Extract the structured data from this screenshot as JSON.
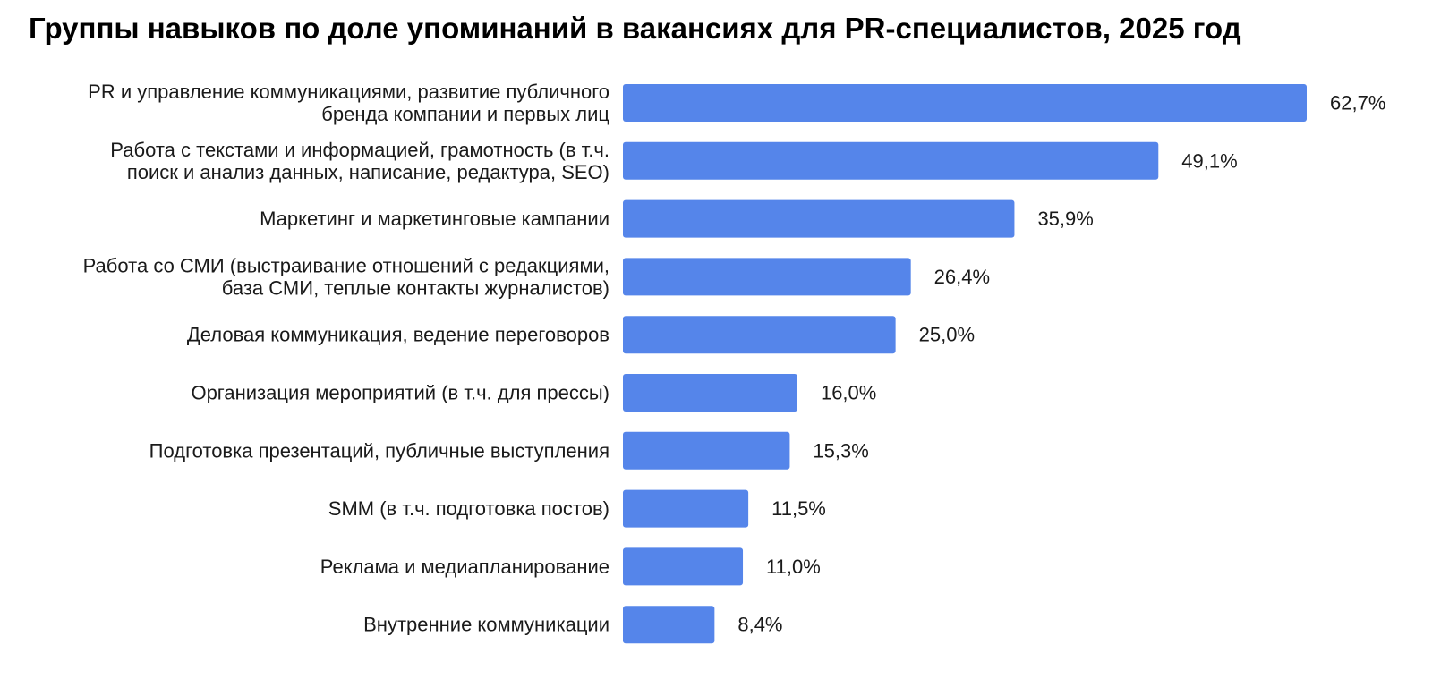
{
  "chart_data": {
    "type": "bar",
    "orientation": "horizontal",
    "title": "Группы навыков по доле упоминаний в вакансиях для PR-специалистов, 2025 год",
    "categories": [
      "PR и управление коммуникациями, развитие публичного бренда компании и первых лиц",
      "Работа с текстами и информацией, грамотность (в т.ч. поиск и анализ данных, написание, редактура, SEO)",
      "Маркетинг и маркетинговые кампании",
      "Работа со СМИ (выстраивание отношений с редакциями, база СМИ, теплые контакты журналистов)",
      "Деловая коммуникация, ведение переговоров",
      "Организация мероприятий (в т.ч. для прессы)",
      "Подготовка презентаций, публичные выступления",
      "SMM (в т.ч. подготовка постов)",
      "Реклама и медиапланирование",
      "Внутренние коммуникации"
    ],
    "label_lines": [
      [
        "PR и управление коммуникациями, развитие публичного",
        "бренда компании и первых лиц"
      ],
      [
        "Работа с текстами и информацией, грамотность (в т.ч.",
        "поиск и анализ данных, написание, редактура, SEO)"
      ],
      [
        "Маркетинг и маркетинговые кампании"
      ],
      [
        "Работа со СМИ (выстраивание отношений с редакциями,",
        "база СМИ, теплые контакты журналистов)"
      ],
      [
        "Деловая коммуникация, ведение переговоров"
      ],
      [
        "Организация мероприятий (в т.ч. для прессы)"
      ],
      [
        "Подготовка презентаций, публичные выступления"
      ],
      [
        "SMM (в т.ч. подготовка постов)"
      ],
      [
        "Реклама и медиапланирование"
      ],
      [
        "Внутренние коммуникации"
      ]
    ],
    "values": [
      62.7,
      49.1,
      35.9,
      26.4,
      25.0,
      16.0,
      15.3,
      11.5,
      11.0,
      8.4
    ],
    "value_labels": [
      "62,7%",
      "49,1%",
      "35,9%",
      "26,4%",
      "25,0%",
      "16,0%",
      "15,3%",
      "11,5%",
      "11,0%",
      "8,4%"
    ],
    "unit": "%",
    "xlim": [
      0,
      62.7
    ],
    "xlabel": "",
    "ylabel": "",
    "grid": false,
    "legend": false,
    "bar_color": "#5585ea"
  }
}
